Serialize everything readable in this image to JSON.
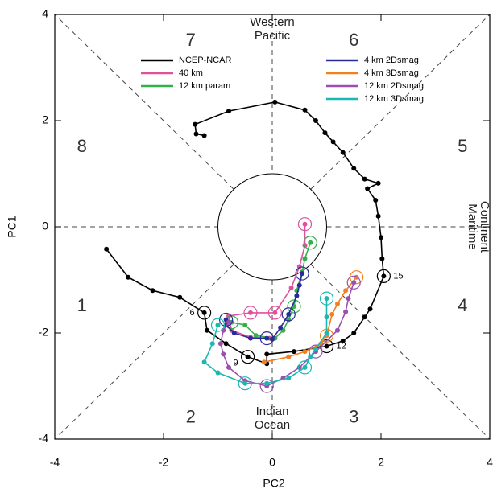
{
  "chart_data": {
    "type": "line",
    "xlabel": "PC2",
    "ylabel": "PC1",
    "xlim": [
      -4,
      4
    ],
    "ylim": [
      -4,
      4
    ],
    "xticks": [
      -4,
      -2,
      0,
      2,
      4
    ],
    "yticks": [
      -4,
      -2,
      0,
      2,
      4
    ],
    "legend": "top",
    "phases": [
      "1",
      "2",
      "3",
      "4",
      "5",
      "6",
      "7",
      "8"
    ],
    "regions": [
      [
        "Western",
        "Pacific"
      ],
      [
        "Indian",
        "Ocean"
      ],
      [
        "Maritime",
        "Continent"
      ]
    ],
    "annotations": [
      {
        "text": "6",
        "x": -1.25,
        "y": -1.62
      },
      {
        "text": "9",
        "x": -0.45,
        "y": -2.45
      },
      {
        "text": "12",
        "x": 1.0,
        "y": -2.25
      },
      {
        "text": "15",
        "x": 2.05,
        "y": -0.93
      }
    ],
    "series": [
      {
        "name": "NCEP-NCAR",
        "color": "#000000",
        "circled": [
          4,
          7,
          11,
          16
        ],
        "x": [
          -3.05,
          -2.65,
          -2.2,
          -1.7,
          -1.25,
          -1.2,
          -0.85,
          -0.45,
          -0.1,
          -0.1,
          0.4,
          1.0,
          1.3,
          1.5,
          1.7,
          1.8,
          2.05,
          2.02,
          2.0,
          1.95,
          1.9,
          1.75,
          1.95,
          1.7,
          1.5,
          1.3,
          1.12,
          0.97,
          0.8,
          0.6,
          0.05,
          -0.8,
          -1.42,
          -1.4,
          -1.25
        ],
        "values": [
          -0.42,
          -0.95,
          -1.2,
          -1.33,
          -1.62,
          -1.95,
          -2.2,
          -2.45,
          -2.58,
          -2.4,
          -2.35,
          -2.25,
          -2.15,
          -2.0,
          -1.7,
          -1.55,
          -0.93,
          -0.6,
          -0.2,
          0.2,
          0.5,
          0.72,
          0.82,
          0.9,
          1.1,
          1.4,
          1.6,
          1.77,
          2.0,
          2.2,
          2.35,
          2.18,
          1.93,
          1.75,
          1.72
        ]
      },
      {
        "name": "40 km",
        "color": "#e0509c",
        "circled": [
          0,
          4,
          5
        ],
        "x": [
          0.6,
          0.6,
          0.5,
          0.35,
          0.05,
          -0.4,
          -0.8,
          -0.75,
          -0.4,
          -0.05
        ],
        "values": [
          0.05,
          -0.35,
          -0.75,
          -1.15,
          -1.62,
          -1.62,
          -1.68,
          -1.95,
          -2.08,
          -2.1
        ]
      },
      {
        "name": "12 km param",
        "color": "#33b04a",
        "circled": [
          0,
          4,
          10
        ],
        "x": [
          0.7,
          0.6,
          0.55,
          0.45,
          0.4,
          0.3,
          0.2,
          0.05,
          -0.3,
          -0.5,
          -0.75
        ],
        "values": [
          -0.3,
          -0.6,
          -0.85,
          -1.2,
          -1.5,
          -1.75,
          -1.95,
          -2.1,
          -2.05,
          -1.85,
          -1.8
        ]
      },
      {
        "name": "4 km 2Dsmag",
        "color": "#2a2a9a",
        "circled": [
          0,
          3,
          6,
          10
        ],
        "x": [
          0.55,
          0.5,
          0.45,
          0.3,
          0.15,
          0.0,
          -0.1,
          -0.4,
          -0.7,
          -0.85,
          -0.85
        ],
        "values": [
          -0.88,
          -1.1,
          -1.3,
          -1.65,
          -1.9,
          -2.12,
          -2.1,
          -2.1,
          -2.0,
          -1.85,
          -1.75
        ]
      },
      {
        "name": "4 km 3Dsmag",
        "color": "#f08020",
        "circled": [
          0,
          4
        ],
        "x": [
          1.55,
          1.35,
          1.2,
          1.1,
          1.0,
          0.9,
          0.6,
          0.3,
          -0.15
        ],
        "values": [
          -0.95,
          -1.2,
          -1.45,
          -1.65,
          -2.05,
          -2.2,
          -2.35,
          -2.45,
          -2.55
        ]
      },
      {
        "name": "12 km 2Dsmag",
        "color": "#9b4fb0",
        "circled": [
          0,
          4,
          7
        ],
        "x": [
          1.5,
          1.4,
          1.35,
          1.2,
          0.8,
          0.5,
          0.2,
          -0.1,
          -0.5,
          -0.8,
          -0.9,
          -0.95,
          -0.9,
          -0.8
        ],
        "values": [
          -1.05,
          -1.35,
          -1.6,
          -1.95,
          -2.35,
          -2.65,
          -2.85,
          -3.0,
          -2.9,
          -2.65,
          -2.4,
          -2.2,
          -1.95,
          -1.8
        ]
      },
      {
        "name": "12 km 3Dsmag",
        "color": "#1ab8b0",
        "circled": [
          0,
          5,
          8,
          12
        ],
        "x": [
          1.0,
          1.0,
          1.0,
          0.8,
          0.7,
          0.6,
          0.3,
          -0.1,
          -0.5,
          -1.0,
          -1.25,
          -1.1,
          -1.0
        ],
        "values": [
          -1.35,
          -1.7,
          -2.0,
          -2.3,
          -2.45,
          -2.65,
          -2.85,
          -2.95,
          -2.95,
          -2.75,
          -2.55,
          -2.2,
          -1.85
        ]
      }
    ]
  }
}
